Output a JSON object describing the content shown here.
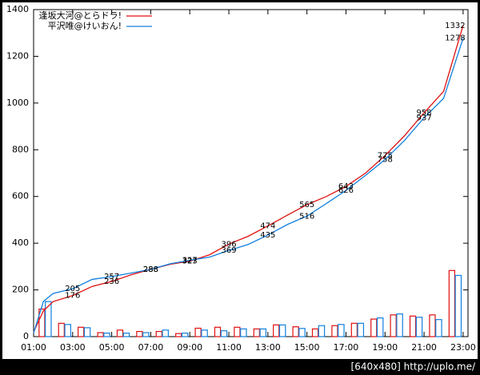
{
  "chart_data": {
    "type": "line",
    "x": [
      1,
      1.5,
      2,
      3,
      4,
      5,
      6,
      7,
      8,
      9,
      10,
      11,
      12,
      13,
      14,
      15,
      16,
      17,
      18,
      19,
      20,
      21,
      22,
      23
    ],
    "series": [
      {
        "name": "逢坂大河@とらドラ!",
        "color": "#e01010",
        "values": [
          20,
          110,
          150,
          176,
          215,
          236,
          265,
          288,
          310,
          323,
          350,
          396,
          430,
          474,
          520,
          565,
          600,
          643,
          700,
          775,
          860,
          958,
          1050,
          1332
        ]
      },
      {
        "name": "平沢唯@けいおん!",
        "color": "#1080e0",
        "values": [
          15,
          150,
          185,
          205,
          245,
          257,
          272,
          288,
          312,
          327,
          340,
          369,
          395,
          435,
          480,
          516,
          570,
          626,
          690,
          758,
          840,
          937,
          1020,
          1278
        ]
      }
    ],
    "bar_x": [
      1,
      2,
      3,
      4,
      5,
      6,
      7,
      8,
      9,
      10,
      11,
      12,
      13,
      14,
      15,
      16,
      17,
      18,
      19,
      20,
      21,
      22
    ],
    "bar_series": [
      {
        "color": "#e01010",
        "values": [
          118,
          57,
          40,
          17,
          28,
          22,
          22,
          13,
          36,
          40,
          40,
          33,
          50,
          42,
          33,
          47,
          57,
          75,
          93,
          88,
          93,
          283
        ]
      },
      {
        "color": "#1080e0",
        "values": [
          150,
          52,
          38,
          15,
          15,
          17,
          28,
          15,
          28,
          25,
          33,
          33,
          50,
          35,
          47,
          52,
          57,
          80,
          97,
          83,
          73,
          262
        ]
      }
    ],
    "xlim": [
      1,
      23.25
    ],
    "xticks": [
      {
        "value": 1,
        "label": "01:00"
      },
      {
        "value": 3,
        "label": "03:00"
      },
      {
        "value": 5,
        "label": "05:00"
      },
      {
        "value": 7,
        "label": "07:00"
      },
      {
        "value": 9,
        "label": "09:00"
      },
      {
        "value": 11,
        "label": "11:00"
      },
      {
        "value": 13,
        "label": "13:00"
      },
      {
        "value": 15,
        "label": "15:00"
      },
      {
        "value": 17,
        "label": "17:00"
      },
      {
        "value": 19,
        "label": "19:00"
      },
      {
        "value": 21,
        "label": "21:00"
      },
      {
        "value": 23,
        "label": "23:00"
      }
    ],
    "ylim": [
      0,
      1400
    ],
    "yticks": [
      0,
      200,
      400,
      600,
      800,
      1000,
      1200,
      1400
    ],
    "grid": false,
    "legend": "top-left",
    "footer": "[640x480] http://uplo.me/"
  }
}
